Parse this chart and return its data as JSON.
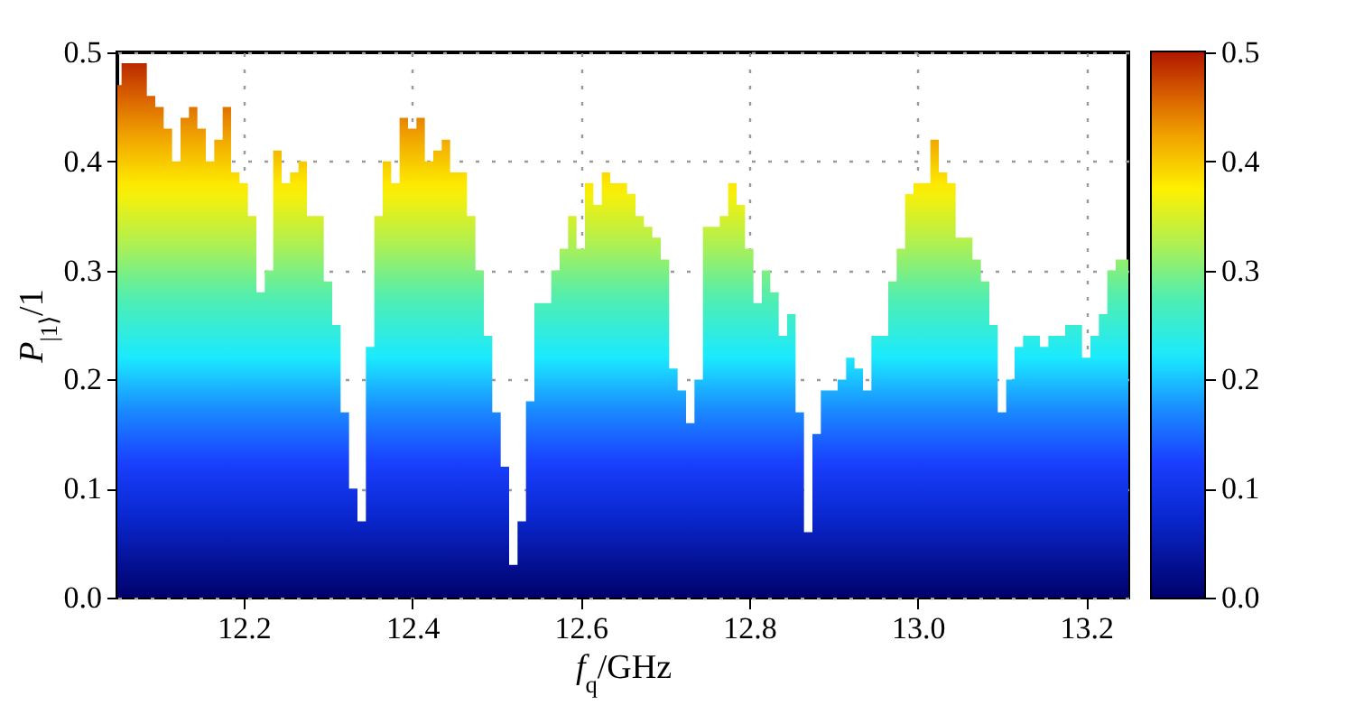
{
  "chart_data": {
    "type": "area",
    "xlabel": "f$_{q}$/GHz",
    "ylabel": "P$_{|1⟩}$/1",
    "x": [
      12.05,
      12.06,
      12.07,
      12.08,
      12.09,
      12.1,
      12.11,
      12.12,
      12.13,
      12.14,
      12.15,
      12.16,
      12.17,
      12.18,
      12.19,
      12.2,
      12.21,
      12.22,
      12.23,
      12.24,
      12.25,
      12.26,
      12.27,
      12.28,
      12.29,
      12.3,
      12.31,
      12.32,
      12.33,
      12.34,
      12.35,
      12.36,
      12.37,
      12.38,
      12.39,
      12.4,
      12.41,
      12.42,
      12.43,
      12.44,
      12.45,
      12.46,
      12.47,
      12.48,
      12.49,
      12.5,
      12.51,
      12.52,
      12.53,
      12.54,
      12.55,
      12.56,
      12.57,
      12.58,
      12.59,
      12.6,
      12.61,
      12.62,
      12.63,
      12.64,
      12.65,
      12.66,
      12.67,
      12.68,
      12.69,
      12.7,
      12.71,
      12.72,
      12.73,
      12.74,
      12.75,
      12.76,
      12.77,
      12.78,
      12.79,
      12.8,
      12.81,
      12.82,
      12.83,
      12.84,
      12.85,
      12.86,
      12.87,
      12.88,
      12.89,
      12.9,
      12.91,
      12.92,
      12.93,
      12.94,
      12.95,
      12.96,
      12.97,
      12.98,
      12.99,
      13.0,
      13.01,
      13.02,
      13.03,
      13.04,
      13.05,
      13.06,
      13.07,
      13.08,
      13.09,
      13.1,
      13.11,
      13.12,
      13.13,
      13.14,
      13.15,
      13.16,
      13.17,
      13.18,
      13.19,
      13.2,
      13.21,
      13.22,
      13.23,
      13.24,
      13.25
    ],
    "values": [
      0.47,
      0.49,
      0.49,
      0.49,
      0.46,
      0.45,
      0.43,
      0.4,
      0.44,
      0.45,
      0.43,
      0.4,
      0.42,
      0.45,
      0.39,
      0.38,
      0.35,
      0.28,
      0.3,
      0.41,
      0.38,
      0.39,
      0.4,
      0.35,
      0.35,
      0.29,
      0.25,
      0.17,
      0.1,
      0.07,
      0.23,
      0.35,
      0.4,
      0.38,
      0.44,
      0.43,
      0.44,
      0.4,
      0.41,
      0.42,
      0.39,
      0.39,
      0.35,
      0.3,
      0.24,
      0.17,
      0.12,
      0.03,
      0.07,
      0.18,
      0.27,
      0.27,
      0.3,
      0.32,
      0.35,
      0.32,
      0.38,
      0.36,
      0.39,
      0.38,
      0.38,
      0.37,
      0.35,
      0.34,
      0.33,
      0.31,
      0.21,
      0.19,
      0.16,
      0.2,
      0.34,
      0.34,
      0.35,
      0.38,
      0.36,
      0.32,
      0.27,
      0.3,
      0.28,
      0.24,
      0.26,
      0.17,
      0.06,
      0.15,
      0.19,
      0.19,
      0.2,
      0.22,
      0.21,
      0.19,
      0.24,
      0.24,
      0.29,
      0.32,
      0.37,
      0.38,
      0.38,
      0.42,
      0.39,
      0.38,
      0.33,
      0.33,
      0.31,
      0.29,
      0.25,
      0.17,
      0.2,
      0.23,
      0.24,
      0.24,
      0.23,
      0.24,
      0.24,
      0.25,
      0.25,
      0.22,
      0.24,
      0.26,
      0.3,
      0.31,
      0.31
    ],
    "xlim": [
      12.05,
      13.25
    ],
    "xticks": [
      12.2,
      12.4,
      12.6,
      12.8,
      {
        "value": 13.0,
        "label": "13.0"
      },
      13.2
    ],
    "ylim": [
      0,
      0.5
    ],
    "yticks": [
      {
        "value": 0,
        "label": "0.0"
      },
      {
        "value": 0.1,
        "label": "0.1"
      },
      {
        "value": 0.2,
        "label": "0.2"
      },
      {
        "value": 0.3,
        "label": "0.3"
      },
      {
        "value": 0.4,
        "label": "0.4"
      },
      {
        "value": 0.5,
        "label": "0.5"
      }
    ],
    "clim": [
      0,
      0.5
    ],
    "cticks": [
      {
        "value": 0,
        "label": "0.0"
      },
      {
        "value": 0.1,
        "label": "0.1"
      },
      {
        "value": 0.2,
        "label": "0.2"
      },
      {
        "value": 0.3,
        "label": "0.3"
      },
      {
        "value": 0.4,
        "label": "0.4"
      },
      {
        "value": 0.5,
        "label": "0.5"
      }
    ],
    "grid": true
  }
}
